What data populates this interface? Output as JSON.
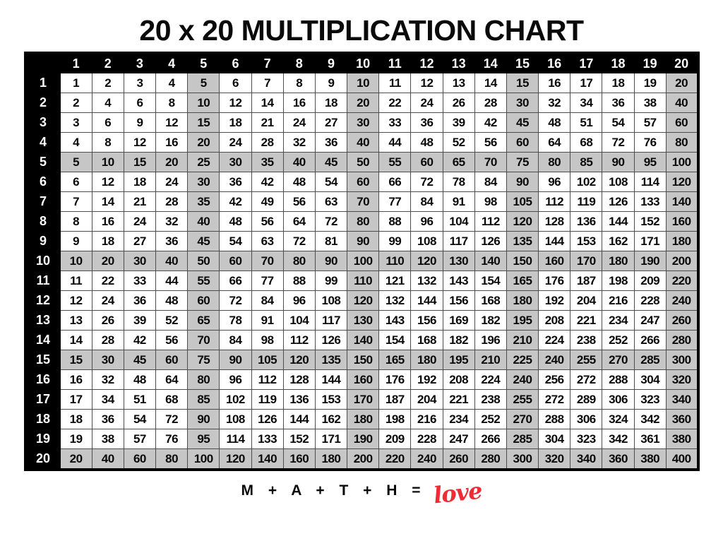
{
  "page": {
    "title": "20 x 20 MULTIPLICATION CHART",
    "background": "#ffffff"
  },
  "chart_data": {
    "type": "table",
    "title": "20 x 20 MULTIPLICATION CHART",
    "col_headers": [
      1,
      2,
      3,
      4,
      5,
      6,
      7,
      8,
      9,
      10,
      11,
      12,
      13,
      14,
      15,
      16,
      17,
      18,
      19,
      20
    ],
    "row_headers": [
      1,
      2,
      3,
      4,
      5,
      6,
      7,
      8,
      9,
      10,
      11,
      12,
      13,
      14,
      15,
      16,
      17,
      18,
      19,
      20
    ],
    "rows": [
      [
        1,
        2,
        3,
        4,
        5,
        6,
        7,
        8,
        9,
        10,
        11,
        12,
        13,
        14,
        15,
        16,
        17,
        18,
        19,
        20
      ],
      [
        2,
        4,
        6,
        8,
        10,
        12,
        14,
        16,
        18,
        20,
        22,
        24,
        26,
        28,
        30,
        32,
        34,
        36,
        38,
        40
      ],
      [
        3,
        6,
        9,
        12,
        15,
        18,
        21,
        24,
        27,
        30,
        33,
        36,
        39,
        42,
        45,
        48,
        51,
        54,
        57,
        60
      ],
      [
        4,
        8,
        12,
        16,
        20,
        24,
        28,
        32,
        36,
        40,
        44,
        48,
        52,
        56,
        60,
        64,
        68,
        72,
        76,
        80
      ],
      [
        5,
        10,
        15,
        20,
        25,
        30,
        35,
        40,
        45,
        50,
        55,
        60,
        65,
        70,
        75,
        80,
        85,
        90,
        95,
        100
      ],
      [
        6,
        12,
        18,
        24,
        30,
        36,
        42,
        48,
        54,
        60,
        66,
        72,
        78,
        84,
        90,
        96,
        102,
        108,
        114,
        120
      ],
      [
        7,
        14,
        21,
        28,
        35,
        42,
        49,
        56,
        63,
        70,
        77,
        84,
        91,
        98,
        105,
        112,
        119,
        126,
        133,
        140
      ],
      [
        8,
        16,
        24,
        32,
        40,
        48,
        56,
        64,
        72,
        80,
        88,
        96,
        104,
        112,
        120,
        128,
        136,
        144,
        152,
        160
      ],
      [
        9,
        18,
        27,
        36,
        45,
        54,
        63,
        72,
        81,
        90,
        99,
        108,
        117,
        126,
        135,
        144,
        153,
        162,
        171,
        180
      ],
      [
        10,
        20,
        30,
        40,
        50,
        60,
        70,
        80,
        90,
        100,
        110,
        120,
        130,
        140,
        150,
        160,
        170,
        180,
        190,
        200
      ],
      [
        11,
        22,
        33,
        44,
        55,
        66,
        77,
        88,
        99,
        110,
        121,
        132,
        143,
        154,
        165,
        176,
        187,
        198,
        209,
        220
      ],
      [
        12,
        24,
        36,
        48,
        60,
        72,
        84,
        96,
        108,
        120,
        132,
        144,
        156,
        168,
        180,
        192,
        204,
        216,
        228,
        240
      ],
      [
        13,
        26,
        39,
        52,
        65,
        78,
        91,
        104,
        117,
        130,
        143,
        156,
        169,
        182,
        195,
        208,
        221,
        234,
        247,
        260
      ],
      [
        14,
        28,
        42,
        56,
        70,
        84,
        98,
        112,
        126,
        140,
        154,
        168,
        182,
        196,
        210,
        224,
        238,
        252,
        266,
        280
      ],
      [
        15,
        30,
        45,
        60,
        75,
        90,
        105,
        120,
        135,
        150,
        165,
        180,
        195,
        210,
        225,
        240,
        255,
        270,
        285,
        300
      ],
      [
        16,
        32,
        48,
        64,
        80,
        96,
        112,
        128,
        144,
        160,
        176,
        192,
        208,
        224,
        240,
        256,
        272,
        288,
        304,
        320
      ],
      [
        17,
        34,
        51,
        68,
        85,
        102,
        119,
        136,
        153,
        170,
        187,
        204,
        221,
        238,
        255,
        272,
        289,
        306,
        323,
        340
      ],
      [
        18,
        36,
        54,
        72,
        90,
        108,
        126,
        144,
        162,
        180,
        198,
        216,
        234,
        252,
        270,
        288,
        306,
        324,
        342,
        360
      ],
      [
        19,
        38,
        57,
        76,
        95,
        114,
        133,
        152,
        171,
        190,
        209,
        228,
        247,
        266,
        285,
        304,
        323,
        342,
        361,
        380
      ],
      [
        20,
        40,
        60,
        80,
        100,
        120,
        140,
        160,
        180,
        200,
        220,
        240,
        260,
        280,
        300,
        320,
        340,
        360,
        380,
        400
      ]
    ],
    "shading": {
      "every_nth": 5,
      "shade_color": "#c6c6c6",
      "header_bg": "#000000",
      "header_text": "#ffffff",
      "grid_line_color": "#4d4d4d"
    },
    "layout": {
      "grid_on": true,
      "legend": "none"
    }
  },
  "footer": {
    "equation": "M + A + T + H =",
    "love_word": "love",
    "love_color": "#ed2c35"
  }
}
